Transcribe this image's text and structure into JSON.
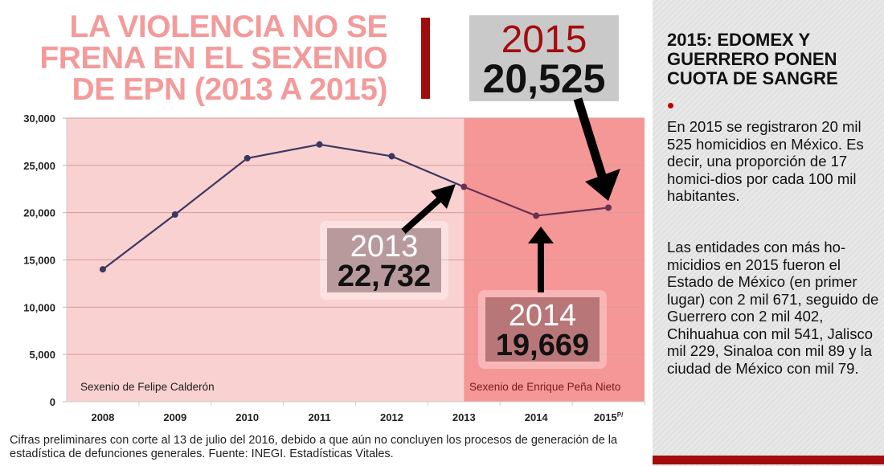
{
  "title": {
    "lines": [
      "LA VIOLENCIA NO SE",
      "FRENA EN EL SEXENIO",
      "DE EPN (2013 A 2015)"
    ]
  },
  "callouts": {
    "y2015": {
      "year": "2015",
      "value": "20,525"
    },
    "y2013": {
      "year": "2013",
      "value": "22,732"
    },
    "y2014": {
      "year": "2014",
      "value": "19,669"
    }
  },
  "chart_data": {
    "type": "line",
    "title": "La violencia no se frena en el sexenio de EPN (2013 a 2015)",
    "categories": [
      "2008",
      "2009",
      "2010",
      "2011",
      "2012",
      "2013",
      "2014",
      "2015"
    ],
    "category_suffix": {
      "2015": "P/"
    },
    "values": [
      14006,
      19803,
      25757,
      27213,
      25967,
      22732,
      19669,
      20525
    ],
    "ylim": [
      0,
      30000
    ],
    "yticks": [
      "0",
      "5,000",
      "10,000",
      "15,000",
      "20,000",
      "25,000",
      "30,000"
    ],
    "ytick_values": [
      0,
      5000,
      10000,
      15000,
      20000,
      25000,
      30000
    ],
    "grid": true,
    "regions": [
      {
        "label": "Sexenio de Felipe Calderón",
        "from": "2008",
        "to": "2013",
        "color": "#f9d1d1"
      },
      {
        "label": "Sexenio de Enrique Peña Nieto",
        "from": "2013",
        "to": "2015",
        "color": "#f59797"
      }
    ],
    "colors": {
      "line": "#3a3860",
      "line_epn": "#6b3050",
      "grid": "#d89a9a"
    }
  },
  "footnote": "Cifras preliminares con corte al 13 de julio del 2016, debido a que aún no concluyen los procesos de generación de la estadística de defunciones generales. Fuente: INEGI. Estadísticas Vitales.",
  "sidebar": {
    "heading": "2015: EDOMEX Y GUERRERO PONEN CUOTA DE SANGRE",
    "paragraph1": "En 2015 se registraron 20 mil 525 homicidios en México. Es decir, una proporción de 17 homici-dios por cada 100 mil habitantes.",
    "paragraph2": "Las entidades con más ho-micidios en 2015 fueron el Estado de México (en primer lugar) con 2 mil 671, seguido de Guerrero con 2 mil 402, Chihuahua con mil 541, Jalisco mil 229, Sinaloa con mil 89 y la ciudad de México con mil 79."
  }
}
